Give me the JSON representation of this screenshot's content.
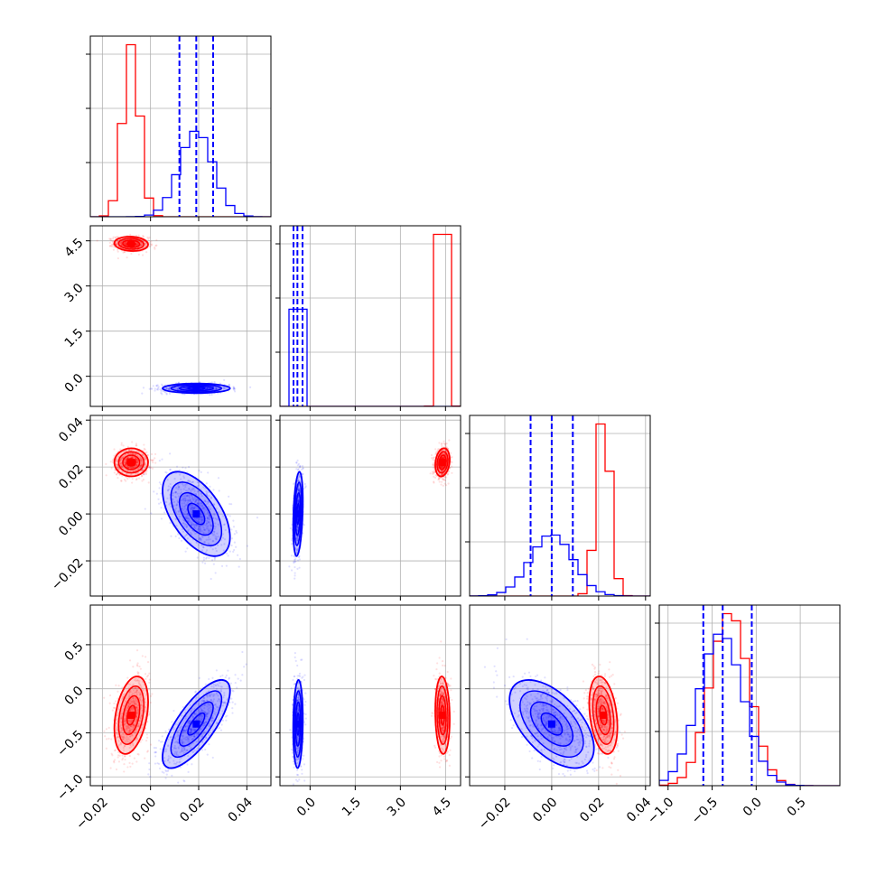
{
  "chart_data": {
    "type": "corner",
    "parameters": 4,
    "grid": true,
    "colors": {
      "a": "#ff0000",
      "b": "#0000ff"
    },
    "axis_ranges": [
      [
        -0.025,
        0.05
      ],
      [
        -1.0,
        5.0
      ],
      [
        -0.035,
        0.042
      ],
      [
        -1.1,
        0.95
      ]
    ],
    "tick_values": [
      [
        -0.02,
        0.0,
        0.02,
        0.04
      ],
      [
        0.0,
        1.5,
        3.0,
        4.5
      ],
      [
        -0.02,
        0.0,
        0.02,
        0.04
      ],
      [
        -1.0,
        -0.5,
        0.0,
        0.5
      ]
    ],
    "tick_labels": [
      [
        "−0.02",
        "0.00",
        "0.02",
        "0.04"
      ],
      [
        "0.0",
        "1.5",
        "3.0",
        "4.5"
      ],
      [
        "−0.02",
        "0.00",
        "0.02",
        "0.04"
      ],
      [
        "−1.0",
        "−0.5",
        "0.0",
        "0.5"
      ]
    ],
    "series": [
      {
        "color": "#ff0000",
        "means": [
          -0.008,
          4.4,
          0.022,
          -0.3
        ],
        "stds": [
          0.0035,
          0.12,
          0.003,
          0.22
        ],
        "correlations": {
          "0-1": -0.1,
          "0-2": 0.0,
          "0-3": 0.35,
          "1-2": 0.2,
          "1-3": -0.1,
          "2-3": -0.3
        },
        "quantiles": []
      },
      {
        "color": "#0000ff",
        "means": [
          0.019,
          -0.4,
          0.0,
          -0.4
        ],
        "stds": [
          0.007,
          0.08,
          0.009,
          0.25
        ],
        "correlations": {
          "0-1": 0.0,
          "0-2": -0.55,
          "0-3": 0.75,
          "1-2": 0.3,
          "1-3": 0.1,
          "2-3": -0.55
        },
        "quantiles": [
          [
            0.012,
            0.019,
            0.026
          ],
          [
            -0.55,
            -0.42,
            -0.25
          ],
          [
            -0.009,
            0.0,
            0.009
          ],
          [
            -0.6,
            -0.38,
            -0.05
          ]
        ]
      }
    ]
  }
}
